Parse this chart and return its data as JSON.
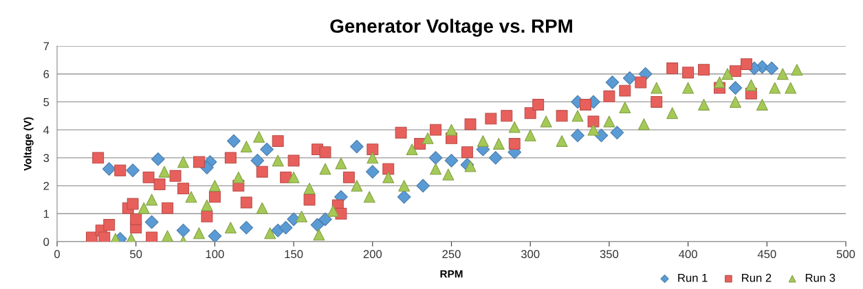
{
  "chart_data": {
    "type": "scatter",
    "title": "Generator Voltage vs. RPM",
    "xlabel": "RPM",
    "ylabel": "Voltage (V)",
    "xlim": [
      0,
      500
    ],
    "xticks": [
      0,
      50,
      100,
      150,
      200,
      250,
      300,
      350,
      400,
      450,
      500
    ],
    "ylim": [
      0,
      7
    ],
    "yticks": [
      0,
      1,
      2,
      3,
      4,
      5,
      6,
      7
    ],
    "grid": "y",
    "legend": "bottom right",
    "series": [
      {
        "name": "Run 1",
        "color": "#5b9bd5",
        "marker": "diamond",
        "x": [
          33,
          48,
          64,
          112,
          133,
          127,
          97,
          95,
          165,
          170,
          220,
          232,
          278,
          355,
          352,
          363,
          373,
          447,
          453,
          442,
          260,
          290,
          330,
          345,
          40,
          60,
          80,
          100,
          120,
          140,
          145,
          150,
          180,
          190,
          200,
          240,
          250,
          270,
          330,
          340,
          430
        ],
        "values": [
          2.6,
          2.55,
          2.95,
          3.6,
          3.3,
          2.9,
          2.85,
          2.65,
          0.6,
          0.8,
          1.6,
          2.0,
          3.0,
          3.9,
          5.7,
          5.85,
          6.0,
          6.25,
          6.2,
          6.2,
          2.75,
          3.2,
          3.8,
          3.8,
          0.1,
          0.7,
          0.4,
          0.2,
          0.5,
          0.4,
          0.5,
          0.8,
          1.6,
          3.4,
          2.5,
          3.0,
          2.9,
          3.3,
          5.0,
          5.0,
          5.5
        ]
      },
      {
        "name": "Run 2",
        "color": "#e8605c",
        "marker": "square",
        "x": [
          22,
          26,
          28,
          30,
          33,
          40,
          45,
          48,
          50,
          50,
          58,
          60,
          65,
          70,
          75,
          80,
          90,
          95,
          100,
          110,
          115,
          120,
          130,
          140,
          145,
          150,
          160,
          165,
          170,
          178,
          180,
          185,
          200,
          210,
          218,
          230,
          240,
          250,
          262,
          275,
          285,
          300,
          305,
          320,
          335,
          350,
          360,
          370,
          390,
          400,
          410,
          430,
          437,
          420,
          440,
          380,
          340,
          290,
          260
        ],
        "values": [
          0.15,
          3.0,
          0.4,
          0.15,
          0.6,
          2.55,
          1.2,
          1.35,
          0.5,
          0.8,
          2.3,
          0.15,
          2.05,
          1.2,
          2.35,
          1.9,
          2.85,
          0.9,
          1.6,
          3.0,
          2.0,
          1.4,
          2.5,
          3.6,
          2.3,
          2.9,
          1.5,
          3.3,
          3.2,
          1.3,
          1.0,
          2.3,
          3.3,
          2.6,
          3.9,
          3.5,
          4.0,
          3.7,
          4.2,
          4.4,
          4.5,
          4.6,
          4.9,
          4.5,
          4.9,
          5.2,
          5.4,
          5.7,
          6.2,
          6.05,
          6.15,
          6.1,
          6.35,
          5.5,
          5.3,
          5.0,
          4.3,
          3.5,
          3.2
        ]
      },
      {
        "name": "Run 3",
        "color": "#a5c956",
        "marker": "triangle",
        "x": [
          37,
          47,
          55,
          60,
          68,
          70,
          80,
          80,
          85,
          90,
          95,
          100,
          110,
          115,
          120,
          128,
          130,
          135,
          140,
          150,
          155,
          160,
          166,
          170,
          175,
          180,
          190,
          198,
          200,
          210,
          220,
          225,
          235,
          240,
          248,
          250,
          262,
          270,
          280,
          290,
          300,
          310,
          320,
          330,
          340,
          350,
          360,
          372,
          380,
          390,
          400,
          410,
          420,
          430,
          440,
          447,
          455,
          460,
          465,
          469,
          425
        ],
        "values": [
          0.1,
          0.1,
          1.2,
          1.5,
          2.5,
          0.2,
          2.85,
          0.0,
          1.6,
          0.3,
          1.3,
          2.0,
          0.5,
          2.3,
          3.4,
          3.75,
          1.2,
          0.3,
          2.9,
          2.3,
          0.9,
          1.9,
          0.25,
          2.6,
          1.1,
          2.8,
          2.0,
          1.6,
          3.0,
          2.3,
          2.0,
          3.3,
          3.7,
          2.6,
          2.4,
          4.0,
          2.7,
          3.6,
          3.5,
          4.1,
          3.8,
          4.3,
          3.6,
          4.5,
          4.0,
          4.3,
          4.8,
          4.2,
          5.5,
          4.6,
          5.5,
          4.9,
          5.7,
          5.0,
          5.6,
          4.9,
          5.5,
          6.0,
          5.5,
          6.15,
          6.0
        ]
      }
    ]
  }
}
